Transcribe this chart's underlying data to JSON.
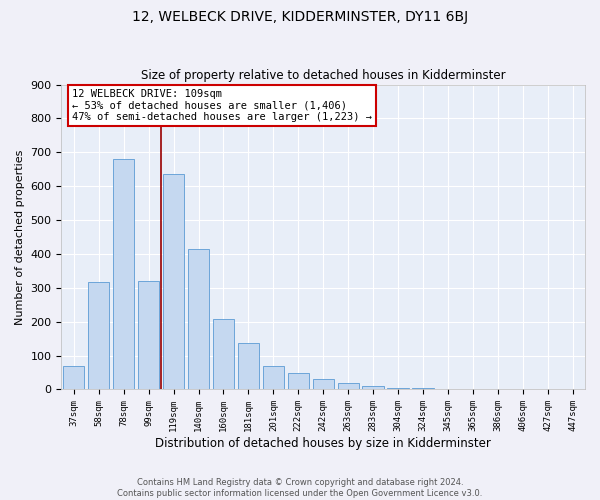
{
  "title": "12, WELBECK DRIVE, KIDDERMINSTER, DY11 6BJ",
  "subtitle": "Size of property relative to detached houses in Kidderminster",
  "xlabel": "Distribution of detached houses by size in Kidderminster",
  "ylabel": "Number of detached properties",
  "categories": [
    "37sqm",
    "58sqm",
    "78sqm",
    "99sqm",
    "119sqm",
    "140sqm",
    "160sqm",
    "181sqm",
    "201sqm",
    "222sqm",
    "242sqm",
    "263sqm",
    "283sqm",
    "304sqm",
    "324sqm",
    "345sqm",
    "365sqm",
    "386sqm",
    "406sqm",
    "427sqm",
    "447sqm"
  ],
  "values": [
    70,
    318,
    680,
    320,
    635,
    415,
    207,
    138,
    70,
    48,
    30,
    20,
    10,
    5,
    3,
    2,
    2,
    1,
    1,
    1,
    1
  ],
  "bar_color": "#c5d8f0",
  "bar_edge_color": "#5b9bd5",
  "vline_color": "#990000",
  "annotation_text": "12 WELBECK DRIVE: 109sqm\n← 53% of detached houses are smaller (1,406)\n47% of semi-detached houses are larger (1,223) →",
  "annotation_box_color": "#ffffff",
  "annotation_box_edge": "#cc0000",
  "ylim": [
    0,
    900
  ],
  "yticks": [
    0,
    100,
    200,
    300,
    400,
    500,
    600,
    700,
    800,
    900
  ],
  "footer": "Contains HM Land Registry data © Crown copyright and database right 2024.\nContains public sector information licensed under the Open Government Licence v3.0.",
  "bg_color": "#e8eef8",
  "grid_color": "#ffffff",
  "title_fontsize": 10,
  "subtitle_fontsize": 8.5,
  "xlabel_fontsize": 8.5,
  "ylabel_fontsize": 8
}
